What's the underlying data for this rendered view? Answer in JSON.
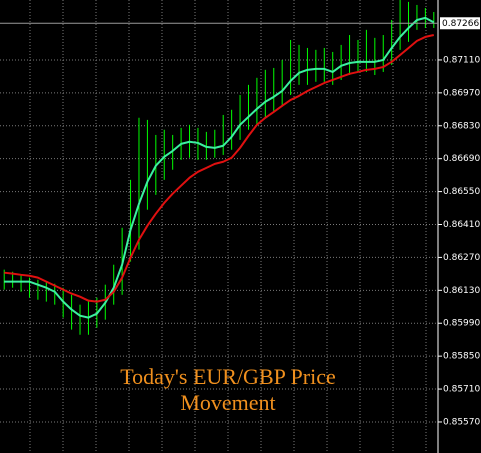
{
  "chart_data": {
    "type": "ohlc",
    "title": "Today's EUR/GBP Price Movement",
    "title_color": "#f0901e",
    "background": "#000000",
    "grid": true,
    "categories": [
      null,
      null,
      null,
      null,
      null,
      null,
      null,
      null,
      null,
      null,
      null,
      null,
      null,
      null,
      null,
      null,
      null,
      null,
      null,
      null,
      null,
      null,
      null,
      null,
      null,
      null,
      null,
      null,
      null,
      null,
      null,
      null,
      null,
      null,
      null,
      null,
      null,
      null,
      null,
      null,
      null,
      null,
      null,
      null,
      null,
      null,
      null,
      null,
      null,
      null,
      null,
      null
    ],
    "bar_color": "#00ff00",
    "high": [
      0.86218,
      0.86209,
      0.86196,
      0.86184,
      0.86175,
      0.86167,
      0.86158,
      0.86141,
      0.86111,
      0.86069,
      0.8609,
      0.86099,
      0.86154,
      0.86239,
      0.86396,
      0.866,
      0.86864,
      0.86855,
      0.86791,
      0.86813,
      0.86791,
      0.86821,
      0.86834,
      0.86821,
      0.86804,
      0.86813,
      0.86876,
      0.86898,
      0.86961,
      0.87004,
      0.87034,
      0.87068,
      0.87076,
      0.8711,
      0.87195,
      0.87174,
      0.87161,
      0.87153,
      0.87161,
      0.87144,
      0.87174,
      0.87216,
      0.87195,
      0.87238,
      0.87204,
      0.87216,
      0.8728,
      0.87365,
      0.87357,
      0.87344,
      0.87331,
      0.87314
    ],
    "low": [
      0.86133,
      0.86141,
      0.86124,
      0.86099,
      0.8609,
      0.86082,
      0.86069,
      0.86014,
      0.85963,
      0.85941,
      0.85941,
      0.85971,
      0.86005,
      0.86069,
      0.86111,
      0.86252,
      0.86303,
      0.86473,
      0.86536,
      0.866,
      0.86643,
      0.86685,
      0.86694,
      0.86685,
      0.86685,
      0.86694,
      0.86706,
      0.86728,
      0.8677,
      0.86813,
      0.86834,
      0.86864,
      0.86889,
      0.86919,
      0.86961,
      0.87004,
      0.87004,
      0.87017,
      0.87017,
      0.87004,
      0.87025,
      0.87046,
      0.87059,
      0.87059,
      0.87046,
      0.87059,
      0.87089,
      0.87153,
      0.87187,
      0.87238,
      0.87246,
      0.87246
    ],
    "lines": [
      {
        "color": "#3cf0a0",
        "values": [
          0.86167,
          0.86167,
          0.86167,
          0.86167,
          0.86154,
          0.86141,
          0.86124,
          0.86082,
          0.86048,
          0.86022,
          0.86014,
          0.86031,
          0.86077,
          0.86141,
          0.86239,
          0.86388,
          0.86498,
          0.86592,
          0.8666,
          0.86698,
          0.86723,
          0.86753,
          0.86762,
          0.86757,
          0.8674,
          0.86736,
          0.86745,
          0.86783,
          0.86834,
          0.86868,
          0.86902,
          0.86932,
          0.86953,
          0.86978,
          0.87021,
          0.87055,
          0.87068,
          0.87072,
          0.87072,
          0.87059,
          0.87085,
          0.87097,
          0.87102,
          0.87102,
          0.87102,
          0.8711,
          0.87161,
          0.87208,
          0.87246,
          0.8728,
          0.87289,
          0.8727
        ]
      },
      {
        "color": "#e01010",
        "values": [
          0.86205,
          0.86201,
          0.86196,
          0.86192,
          0.86184,
          0.86167,
          0.8615,
          0.86133,
          0.86116,
          0.86103,
          0.86086,
          0.86082,
          0.8609,
          0.86124,
          0.86184,
          0.86269,
          0.86345,
          0.86405,
          0.86456,
          0.86502,
          0.86541,
          0.86575,
          0.86609,
          0.86634,
          0.86651,
          0.86668,
          0.86677,
          0.86694,
          0.86736,
          0.86787,
          0.86834,
          0.86864,
          0.86889,
          0.86915,
          0.8694,
          0.86957,
          0.86978,
          0.86995,
          0.87012,
          0.87025,
          0.87038,
          0.87051,
          0.87059,
          0.87068,
          0.87072,
          0.8708,
          0.87102,
          0.87131,
          0.87161,
          0.87191,
          0.87208,
          0.87216
        ]
      }
    ],
    "last_price": 0.87266,
    "ylim": [
      0.85438,
      0.87365
    ],
    "yticks": [
      {
        "value": 0.8711,
        "label": "0.87110"
      },
      {
        "value": 0.8697,
        "label": "0.86970"
      },
      {
        "value": 0.8683,
        "label": "0.86830"
      },
      {
        "value": 0.8669,
        "label": "0.86690"
      },
      {
        "value": 0.8655,
        "label": "0.86550"
      },
      {
        "value": 0.8641,
        "label": "0.86410"
      },
      {
        "value": 0.8627,
        "label": "0.86270"
      },
      {
        "value": 0.8613,
        "label": "0.86130"
      },
      {
        "value": 0.8599,
        "label": "0.85990"
      },
      {
        "value": 0.8585,
        "label": "0.85850"
      },
      {
        "value": 0.8571,
        "label": "0.85710"
      },
      {
        "value": 0.8557,
        "label": "0.85570"
      }
    ]
  }
}
